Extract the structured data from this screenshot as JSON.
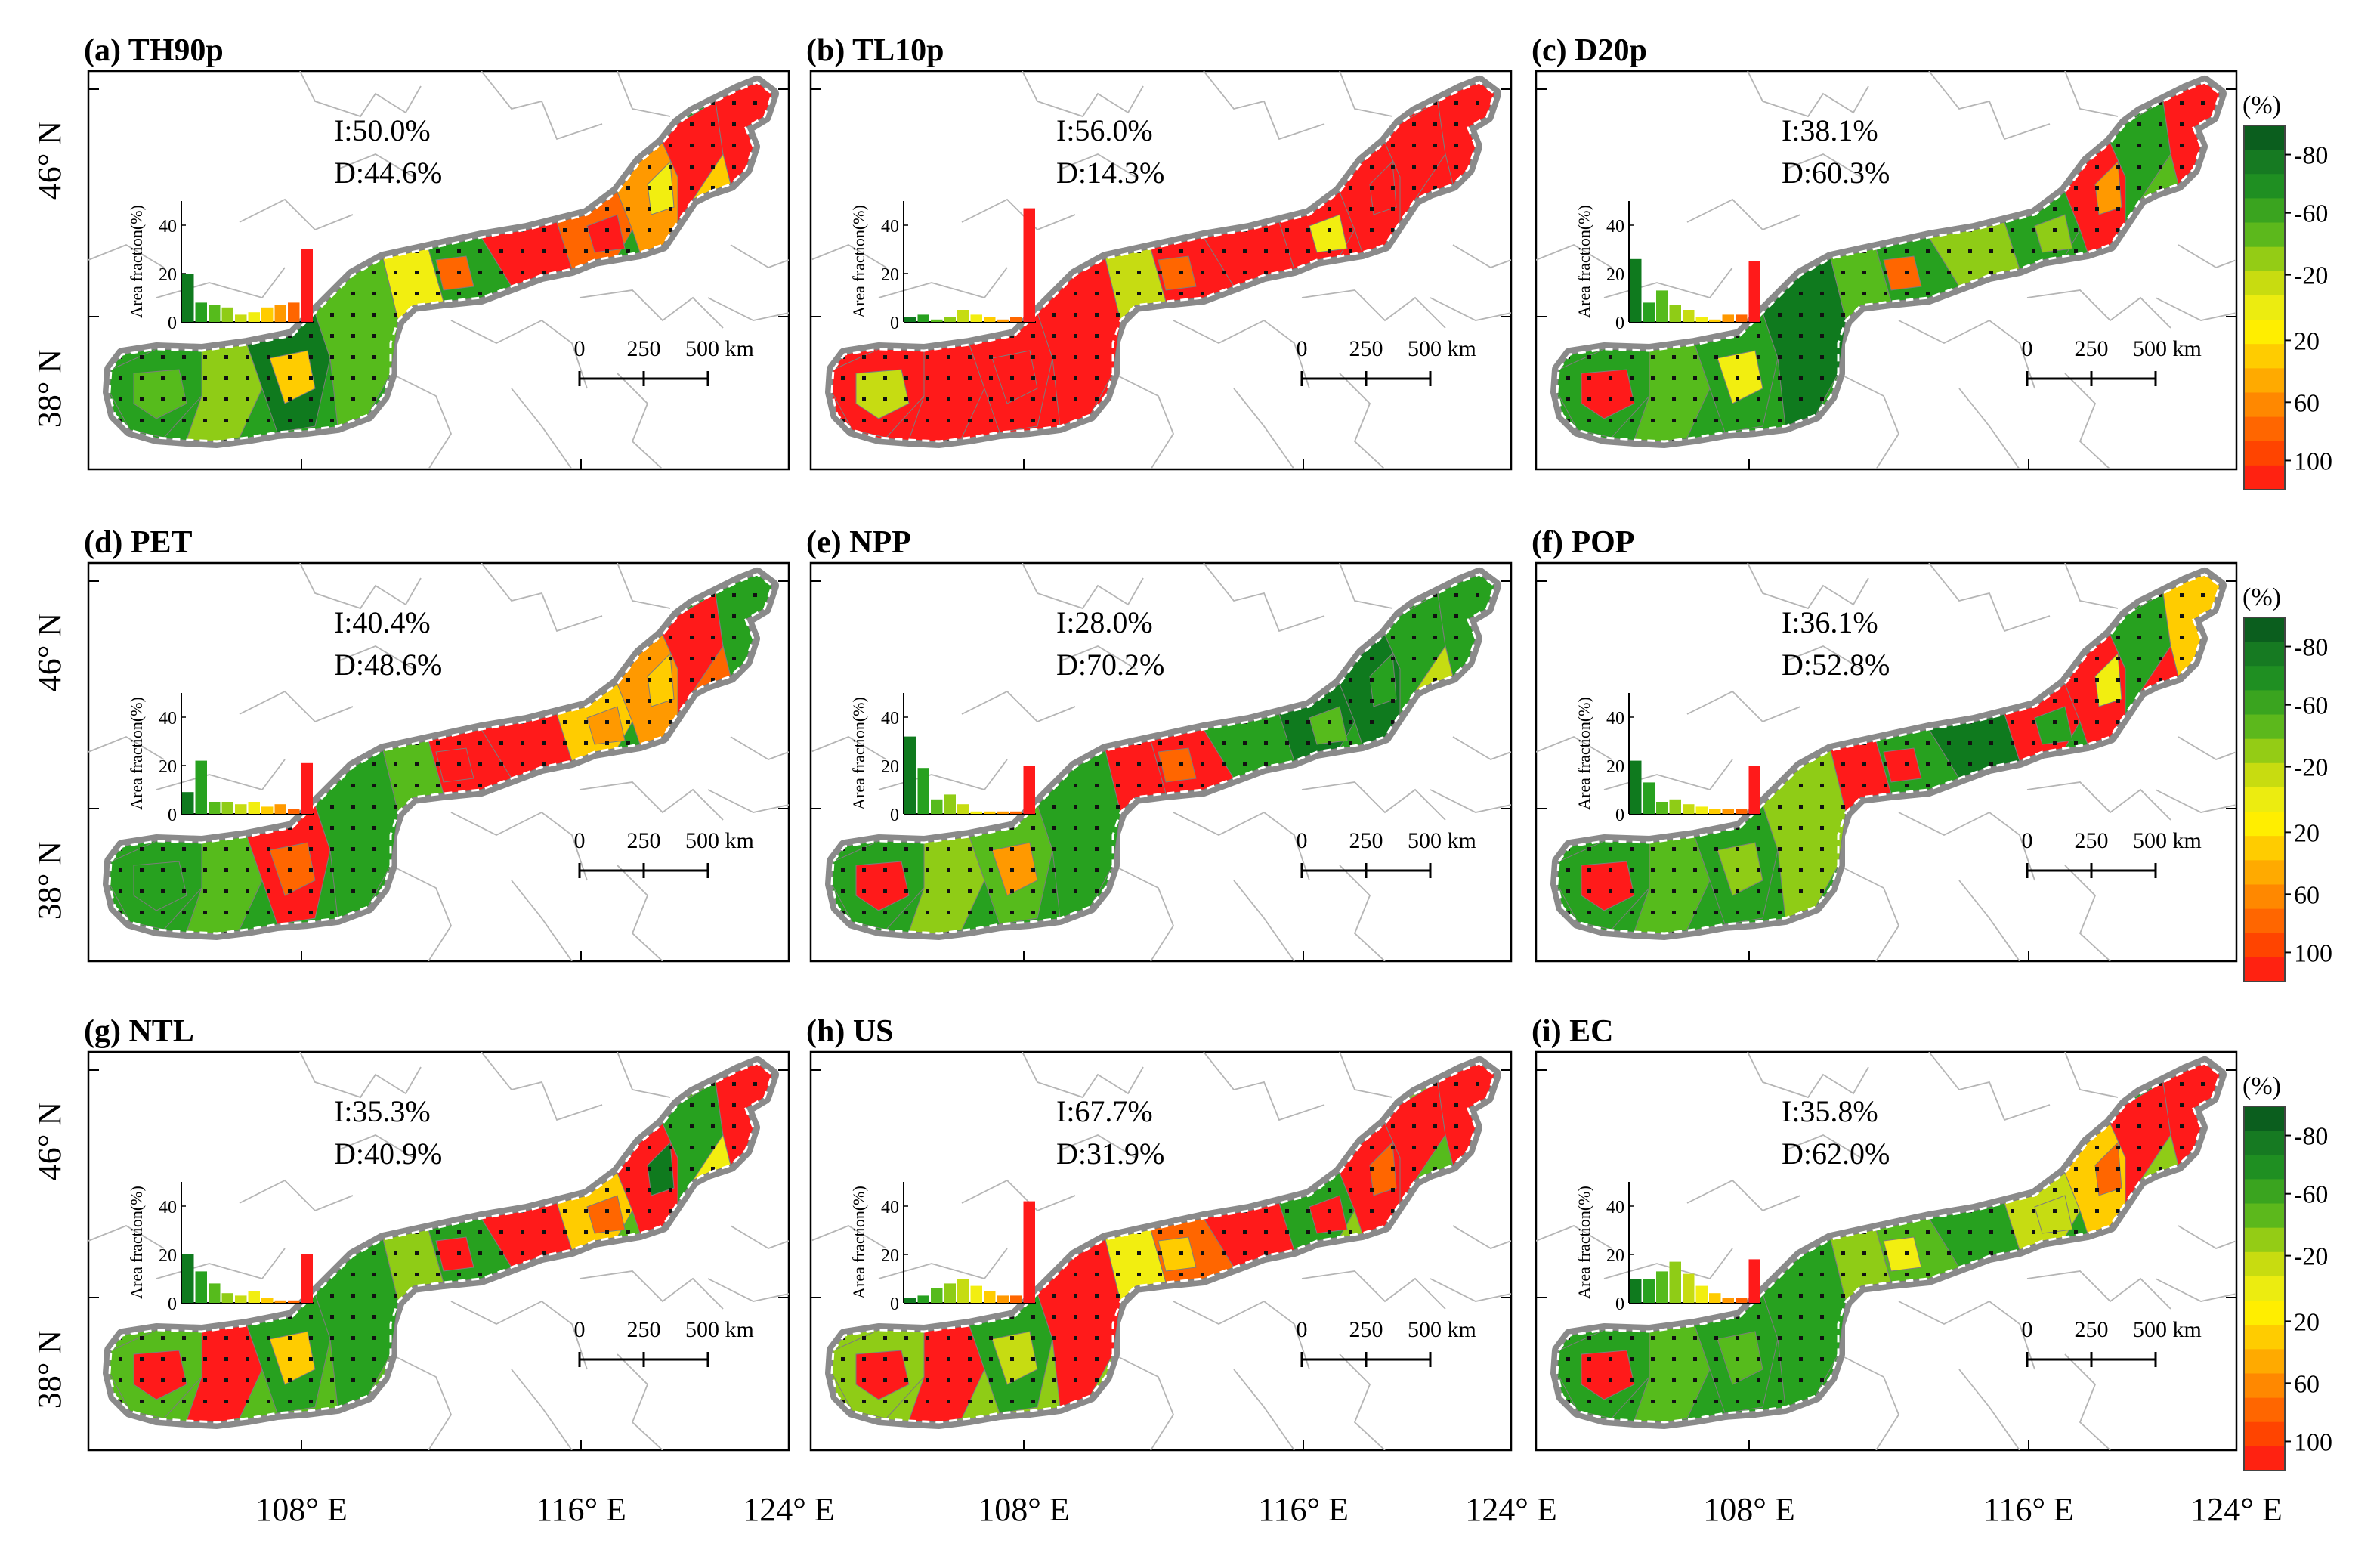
{
  "figure": {
    "panels": [
      {
        "tag": "(a) TH90p",
        "I": "I:50.0%",
        "D": "D:44.6%",
        "area_fraction": [
          20,
          8,
          7,
          6,
          3,
          4,
          6,
          7,
          8,
          30
        ],
        "colorbar": true
      },
      {
        "tag": "(b) TL10p",
        "I": "I:56.0%",
        "D": "D:14.3%",
        "area_fraction": [
          2,
          3,
          1,
          2,
          5,
          3,
          2,
          1,
          2,
          47
        ],
        "colorbar": false
      },
      {
        "tag": "(c) D20p",
        "I": "I:38.1%",
        "D": "D:60.3%",
        "area_fraction": [
          26,
          8,
          13,
          7,
          5,
          2,
          1,
          3,
          3,
          25
        ],
        "colorbar": true
      },
      {
        "tag": "(d) PET",
        "I": "I:40.4%",
        "D": "D:48.6%",
        "area_fraction": [
          9,
          22,
          5,
          5,
          4,
          5,
          3,
          4,
          2,
          21
        ],
        "colorbar": false
      },
      {
        "tag": "(e) NPP",
        "I": "I:28.0%",
        "D": "D:70.2%",
        "area_fraction": [
          32,
          19,
          6,
          8,
          4,
          1,
          1,
          1,
          1,
          20
        ],
        "colorbar": false
      },
      {
        "tag": "(f) POP",
        "I": "I:36.1%",
        "D": "D:52.8%",
        "area_fraction": [
          22,
          13,
          5,
          6,
          4,
          3,
          2,
          2,
          2,
          20
        ],
        "colorbar": true
      },
      {
        "tag": "(g) NTL",
        "I": "I:35.3%",
        "D": "D:40.9%",
        "area_fraction": [
          20,
          13,
          8,
          4,
          3,
          5,
          2,
          1,
          1,
          20
        ],
        "colorbar": false
      },
      {
        "tag": "(h) US",
        "I": "I:67.7%",
        "D": "D:31.9%",
        "area_fraction": [
          2,
          3,
          6,
          8,
          10,
          7,
          5,
          3,
          3,
          42
        ],
        "colorbar": false
      },
      {
        "tag": "(i) EC",
        "I": "I:35.8%",
        "D": "D:62.0%",
        "area_fraction": [
          10,
          10,
          13,
          17,
          12,
          7,
          4,
          2,
          2,
          18
        ],
        "colorbar": true
      }
    ],
    "inset_ylabel": "Area fraction(%)",
    "inset_yticks": [
      "0",
      "20",
      "40"
    ],
    "inset_ymax": 50,
    "scalebar": {
      "labels": [
        "0",
        "250",
        "500 km"
      ]
    },
    "lat_ticks": [
      "46° N",
      "38° N"
    ],
    "lon_ticks": [
      "108° E",
      "116° E",
      "124° E"
    ],
    "colorbar": {
      "unit": "(%)",
      "tick_labels": [
        "-80",
        "-60",
        "-20",
        "20",
        "60",
        "100"
      ],
      "colors": [
        "#0b5e1e",
        "#167a22",
        "#1f8f22",
        "#3aa41f",
        "#5cb81c",
        "#94cc15",
        "#c8dc10",
        "#ecec10",
        "#ffee00",
        "#ffcc00",
        "#ffaa00",
        "#ff8800",
        "#ff6600",
        "#ff4400",
        "#ff2211"
      ]
    },
    "bar_colors": [
      "#0f7a1e",
      "#27a11f",
      "#56bb1c",
      "#8fcc16",
      "#c6dc12",
      "#f2ee10",
      "#ffcc00",
      "#ff9900",
      "#ff6600",
      "#ff1a1a"
    ]
  }
}
